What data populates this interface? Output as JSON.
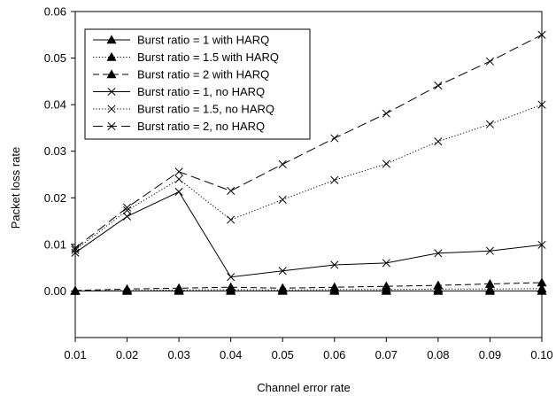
{
  "chart_data": {
    "type": "line",
    "title": "",
    "xlabel": "Channel error rate",
    "ylabel": "Packet loss rate",
    "x": [
      0.01,
      0.02,
      0.03,
      0.04,
      0.05,
      0.06,
      0.07,
      0.08,
      0.09,
      0.1
    ],
    "x_tick_labels": [
      "0.01",
      "0.02",
      "0.03",
      "0.04",
      "0.05",
      "0.06",
      "0.07",
      "0.08",
      "0.09",
      "0.10"
    ],
    "xlim": [
      0.01,
      0.1
    ],
    "ylim": [
      -0.01,
      0.06
    ],
    "y_ticks": [
      0.0,
      0.01,
      0.02,
      0.03,
      0.04,
      0.05,
      0.06
    ],
    "y_tick_labels": [
      "0.00",
      "0.01",
      "0.02",
      "0.03",
      "0.04",
      "0.05",
      "0.06"
    ],
    "grid": false,
    "legend_position": "top-left",
    "series": [
      {
        "name": "Burst ratio = 1 with HARQ",
        "marker": "triangle",
        "dash": "solid",
        "values": [
          0.0,
          0.0,
          0.0,
          0.0,
          0.0,
          0.0,
          0.0,
          0.0,
          0.0,
          0.0
        ]
      },
      {
        "name": "Burst ratio = 1.5 with HARQ",
        "marker": "triangle",
        "dash": "dotted",
        "values": [
          0.0,
          0.0001,
          0.0002,
          0.0003,
          0.0002,
          0.0003,
          0.0003,
          0.0004,
          0.0004,
          0.0005
        ]
      },
      {
        "name": "Burst ratio = 2 with HARQ",
        "marker": "triangle",
        "dash": "dashed",
        "values": [
          0.0001,
          0.0004,
          0.0006,
          0.0008,
          0.0006,
          0.0008,
          0.001,
          0.0012,
          0.0015,
          0.0018
        ]
      },
      {
        "name": "Burst ratio = 1, no HARQ",
        "marker": "x",
        "dash": "solid",
        "values": [
          0.0082,
          0.016,
          0.0213,
          0.003,
          0.0043,
          0.0056,
          0.006,
          0.0081,
          0.0086,
          0.0099
        ]
      },
      {
        "name": "Burst ratio = 1.5, no HARQ",
        "marker": "x",
        "dash": "dotted",
        "values": [
          0.0088,
          0.0173,
          0.024,
          0.0153,
          0.0196,
          0.0238,
          0.0273,
          0.0321,
          0.0358,
          0.04
        ]
      },
      {
        "name": "Burst ratio = 2, no HARQ",
        "marker": "x",
        "dash": "longdash",
        "values": [
          0.0092,
          0.0179,
          0.0256,
          0.0215,
          0.0272,
          0.0328,
          0.0381,
          0.0441,
          0.0493,
          0.055
        ]
      }
    ]
  }
}
